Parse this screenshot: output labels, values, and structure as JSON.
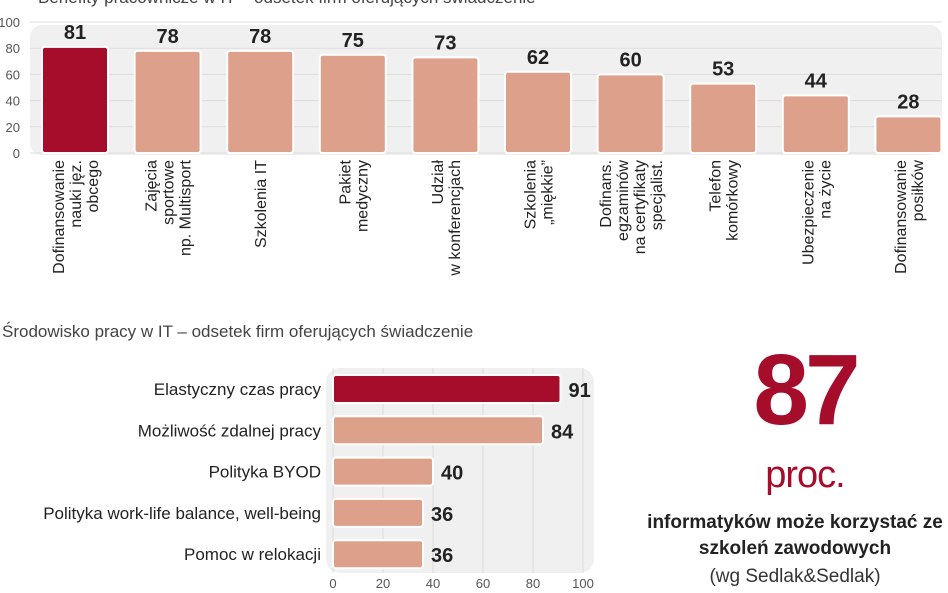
{
  "chart_data": [
    {
      "type": "bar",
      "title": "Benefity pracownicze w IT – odsetek firm oferujących świadczenie",
      "categories": [
        [
          "Dofinansowanie",
          "nauki jęz.",
          "obcego"
        ],
        [
          "Zajęcia",
          "sportowe",
          "np. Multisport"
        ],
        [
          "Szkolenia IT"
        ],
        [
          "Pakiet",
          "medyczny"
        ],
        [
          "Udział",
          "w konferencjach"
        ],
        [
          "Szkolenia",
          "„miękkie”"
        ],
        [
          "Dofinans.",
          "egzaminów",
          "na certyfikaty",
          "specjalist."
        ],
        [
          "Telefon",
          "komórkowy"
        ],
        [
          "Ubezpieczenie",
          "na życie"
        ],
        [
          "Dofinansowanie",
          "posiłków"
        ]
      ],
      "values": [
        81,
        78,
        78,
        75,
        73,
        62,
        60,
        53,
        44,
        28
      ],
      "highlight_index": 0,
      "ylim": [
        0,
        100
      ],
      "yticks": [
        0,
        20,
        40,
        60,
        80,
        100
      ],
      "grid": true
    },
    {
      "type": "bar",
      "orientation": "horizontal",
      "title": "Środowisko pracy w IT – odsetek firm oferujących świadczenie",
      "categories": [
        "Elastyczny czas pracy",
        "Możliwość zdalnej pracy",
        "Polityka BYOD",
        "Polityka work-life balance, well-being",
        "Pomoc w relokacji"
      ],
      "values": [
        91,
        84,
        40,
        36,
        36
      ],
      "highlight_index": 0,
      "xlim": [
        0,
        100
      ],
      "xticks": [
        0,
        20,
        40,
        60,
        80,
        100
      ],
      "grid": true
    }
  ],
  "callout": {
    "number": "87",
    "unit": "proc.",
    "description": "informatyków może korzystać ze szkoleń zawodowych",
    "source": "(wg Sedlak&Sedlak)"
  },
  "colors": {
    "highlight": "#a50d2a",
    "bar": "#dda08b",
    "panel": "#f0f0f0"
  }
}
